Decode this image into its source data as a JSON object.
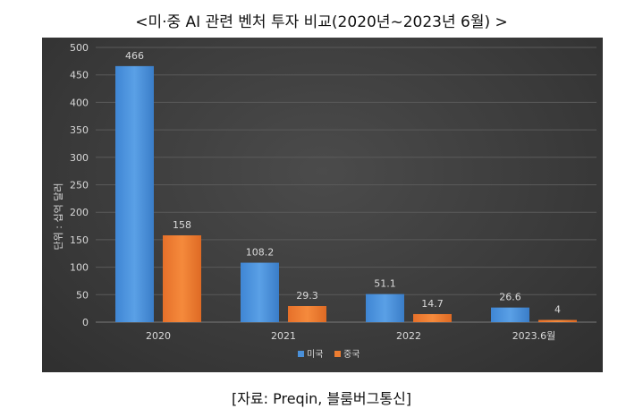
{
  "title": "<미·중 AI 관련 벤처 투자 비교(2020년~2023년 6월) >",
  "source": "[자료: Preqin, 블룸버그통신]",
  "colors": {
    "us": "#4a90d9",
    "cn": "#ed7d31",
    "background": "#3d3d3d",
    "grid": "#5a5a5a",
    "text": "#d9d9d9"
  },
  "chart_data": {
    "type": "bar",
    "categories": [
      "2020",
      "2021",
      "2022",
      "2023.6월"
    ],
    "series": [
      {
        "name": "미국",
        "values": [
          466,
          108.2,
          51.1,
          26.6
        ],
        "labels": [
          "466",
          "108.2",
          "51.1",
          "26.6"
        ]
      },
      {
        "name": "중국",
        "values": [
          158,
          29.3,
          14.7,
          4
        ],
        "labels": [
          "158",
          "29.3",
          "14.7",
          "4"
        ]
      }
    ],
    "ylabel": "단위 : 십억 달러",
    "ylim": [
      0,
      500
    ],
    "yticks": [
      0,
      50,
      100,
      150,
      200,
      250,
      300,
      350,
      400,
      450,
      500
    ],
    "grid": true,
    "legend": "bottom-center"
  }
}
